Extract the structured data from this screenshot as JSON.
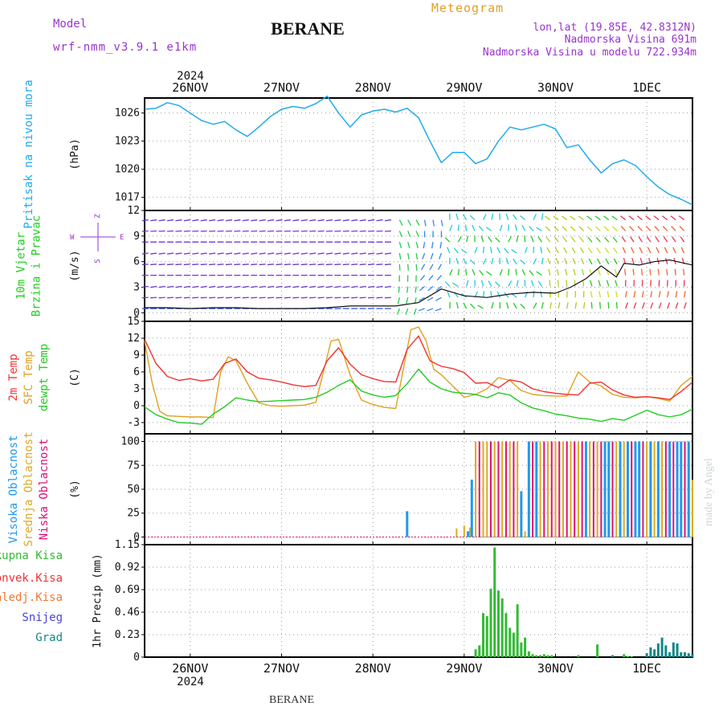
{
  "header": {
    "model_label": "Model",
    "model_name": "wrf-nmm_v3.9.1 e1km",
    "station": "BERANE",
    "product": "Meteogram",
    "coords": "lon,lat (19.85E, 42.8312N)",
    "elevation": "Nadmorska Visina 691m",
    "model_elevation": "Nadmorska Visina u modelu 722.934m",
    "footer_station": "BERANE",
    "credit": "made by Angel"
  },
  "colors": {
    "pressure": "#22aaee",
    "temp2m": "#ee3333",
    "sfc": "#e0a020",
    "dew": "#22cc22",
    "cloud_high": "#2299ee",
    "cloud_mid": "#ddaa22",
    "cloud_low": "#dd1177",
    "precip_total": "#33bb33",
    "precip_grad": "#118888",
    "wind_speed": "#111111",
    "label_purple": "#9933cc",
    "label_orange": "#e0a020"
  },
  "time_axis": {
    "top_year": "2024",
    "bottom_year": "2024",
    "day_labels": [
      "26NOV",
      "27NOV",
      "28NOV",
      "29NOV",
      "30NOV",
      "1DEC"
    ],
    "start_hour": -12,
    "end_hour": 132
  },
  "chart_data": [
    {
      "type": "line",
      "id": "pressure",
      "ylabel": "(hPa)",
      "side_label": [
        "Pritisak na nivou mora"
      ],
      "ylim": [
        1015.6,
        1027.6
      ],
      "yticks": [
        1017,
        1020,
        1023,
        1026
      ],
      "grid": true,
      "series": [
        {
          "x": [
            -12,
            -9,
            -6,
            -3,
            0,
            3,
            6,
            9,
            12,
            15,
            18,
            21,
            24,
            27,
            30,
            33,
            36,
            39,
            42,
            45,
            48,
            51,
            54,
            57,
            60,
            63,
            66,
            69,
            72,
            75,
            78,
            81,
            84,
            87,
            90,
            93,
            96,
            99,
            102,
            105,
            108,
            111,
            114,
            117,
            120,
            123,
            126,
            129,
            132
          ],
          "values": [
            1026.4,
            1026.5,
            1027.1,
            1026.8,
            1026.0,
            1025.2,
            1024.8,
            1025.1,
            1024.2,
            1023.5,
            1024.5,
            1025.6,
            1026.4,
            1026.7,
            1026.5,
            1027.0,
            1027.8,
            1026.0,
            1024.5,
            1025.8,
            1026.2,
            1026.4,
            1026.1,
            1026.5,
            1025.5,
            1023.0,
            1020.7,
            1021.8,
            1021.8,
            1020.6,
            1021.1,
            1023.0,
            1024.5,
            1024.2,
            1024.5,
            1024.8,
            1024.3,
            1022.3,
            1022.6,
            1021.0,
            1019.6,
            1020.6,
            1021.0,
            1020.4,
            1019.2,
            1018.1,
            1017.3,
            1016.8,
            1016.2
          ]
        }
      ]
    },
    {
      "type": "line",
      "id": "wind",
      "ylabel": "(m/s)",
      "side_label": [
        "10m Vjetar",
        "Brzina i Pravac"
      ],
      "direction_key": [
        "Z",
        "W",
        "E",
        "S"
      ],
      "ylim": [
        -1,
        12
      ],
      "yticks": [
        0,
        3,
        6,
        9,
        12
      ],
      "grid": true,
      "series": [
        {
          "name": "wind speed",
          "x": [
            -12,
            -6,
            0,
            6,
            12,
            18,
            24,
            30,
            36,
            42,
            48,
            54,
            60,
            66,
            72,
            78,
            84,
            90,
            96,
            100,
            104,
            108,
            112,
            114,
            118,
            122,
            126,
            132
          ],
          "values": [
            0.6,
            0.6,
            0.5,
            0.6,
            0.6,
            0.5,
            0.5,
            0.5,
            0.6,
            0.8,
            0.8,
            0.8,
            1.2,
            2.8,
            2.0,
            1.8,
            2.2,
            2.4,
            2.3,
            3.0,
            4.0,
            5.5,
            4.2,
            5.8,
            5.6,
            6.0,
            6.2,
            5.6
          ]
        }
      ]
    },
    {
      "type": "line",
      "id": "temperature",
      "ylabel": "(C)",
      "side_label": [
        "2m Temp",
        "SFC Temp",
        "dewpt Temp"
      ],
      "ylim": [
        -5,
        15
      ],
      "yticks": [
        -3,
        0,
        3,
        6,
        9,
        12,
        15
      ],
      "grid": true,
      "series": [
        {
          "name": "2m Temp",
          "x": [
            -12,
            -9,
            -6,
            -3,
            0,
            3,
            6,
            9,
            12,
            15,
            18,
            21,
            24,
            27,
            30,
            33,
            36,
            39,
            42,
            45,
            48,
            51,
            54,
            57,
            60,
            63,
            66,
            69,
            72,
            75,
            78,
            81,
            84,
            87,
            90,
            93,
            96,
            99,
            102,
            105,
            108,
            111,
            114,
            117,
            120,
            123,
            126,
            129,
            132
          ],
          "values": [
            11.8,
            7.5,
            5.2,
            4.5,
            4.8,
            4.4,
            4.7,
            7.5,
            8.3,
            6.0,
            4.9,
            4.6,
            4.2,
            3.7,
            3.4,
            3.6,
            8.0,
            10.3,
            7.4,
            5.5,
            4.8,
            4.3,
            4.2,
            10.0,
            12.4,
            8.0,
            7.0,
            6.6,
            5.9,
            4.0,
            4.1,
            3.2,
            4.6,
            4.2,
            3.0,
            2.5,
            2.2,
            2.0,
            1.9,
            4.0,
            4.2,
            2.8,
            1.9,
            1.5,
            1.6,
            1.4,
            1.1,
            2.5,
            4.2
          ]
        },
        {
          "name": "SFC Temp",
          "x": [
            -12,
            -10,
            -8,
            -6,
            -3,
            0,
            3,
            6,
            8,
            10,
            12,
            15,
            18,
            21,
            24,
            27,
            30,
            33,
            35,
            37,
            39,
            42,
            45,
            48,
            51,
            54,
            56,
            58,
            60,
            62,
            64,
            66,
            69,
            72,
            75,
            78,
            81,
            84,
            87,
            90,
            93,
            96,
            99,
            102,
            105,
            108,
            111,
            114,
            117,
            120,
            123,
            126,
            129,
            132
          ],
          "values": [
            11.5,
            4.0,
            -1.0,
            -1.8,
            -1.9,
            -2.0,
            -2.0,
            -2.1,
            6.0,
            8.7,
            8.0,
            4.0,
            0.5,
            0.0,
            -0.1,
            0.0,
            0.1,
            0.6,
            6.0,
            11.5,
            11.8,
            5.5,
            1.0,
            0.2,
            -0.3,
            -0.5,
            6.5,
            13.5,
            14.0,
            11.5,
            6.5,
            5.5,
            3.5,
            1.5,
            2.0,
            3.0,
            5.0,
            4.5,
            2.7,
            2.0,
            1.8,
            1.7,
            1.7,
            6.0,
            4.2,
            3.5,
            2.0,
            1.5,
            1.4,
            1.6,
            1.3,
            0.8,
            3.6,
            5.2
          ]
        },
        {
          "name": "dewpt Temp",
          "x": [
            -12,
            -9,
            -6,
            -3,
            0,
            3,
            6,
            9,
            12,
            15,
            18,
            21,
            24,
            27,
            30,
            33,
            36,
            39,
            42,
            45,
            48,
            51,
            54,
            57,
            60,
            63,
            66,
            69,
            72,
            75,
            78,
            81,
            84,
            87,
            90,
            93,
            96,
            99,
            102,
            105,
            108,
            111,
            114,
            117,
            120,
            123,
            126,
            129,
            132
          ],
          "values": [
            -0.2,
            -1.6,
            -2.4,
            -3.0,
            -3.1,
            -3.3,
            -1.5,
            -0.2,
            1.4,
            1.0,
            0.7,
            0.8,
            0.9,
            1.0,
            1.1,
            1.5,
            2.4,
            3.6,
            4.6,
            2.6,
            1.9,
            1.5,
            1.8,
            3.9,
            6.5,
            4.2,
            3.0,
            2.4,
            2.2,
            2.0,
            1.4,
            2.3,
            1.9,
            0.5,
            -0.4,
            -0.9,
            -1.5,
            -1.8,
            -2.2,
            -2.4,
            -2.8,
            -2.3,
            -2.6,
            -1.7,
            -0.8,
            -1.6,
            -2.0,
            -1.6,
            -0.6
          ]
        }
      ]
    },
    {
      "type": "bar",
      "id": "cloud",
      "ylabel": "(%)",
      "side_label": [
        "Visoka Oblacnost",
        "Srednja Oblacnost",
        "Niska Oblacnost"
      ],
      "ylim": [
        -8,
        108
      ],
      "yticks": [
        0,
        25,
        50,
        75,
        100
      ],
      "grid": true,
      "series": [
        {
          "name": "Visoka Oblacnost",
          "x": [
            57,
            73,
            74,
            87,
            89,
            91,
            104,
            109,
            110,
            113,
            115,
            117,
            118,
            121,
            123,
            126,
            128,
            129,
            131
          ],
          "values": [
            27,
            6,
            60,
            48,
            100,
            100,
            100,
            100,
            100,
            100,
            100,
            100,
            100,
            100,
            100,
            100,
            100,
            100,
            100
          ]
        },
        {
          "name": "Srednja Oblacnost",
          "x": [
            70,
            72,
            73.5,
            75,
            77,
            78,
            80,
            82,
            84,
            86,
            88,
            92,
            94,
            96,
            98,
            100,
            102,
            105,
            107,
            112,
            114,
            116,
            118,
            120,
            122,
            124,
            126,
            128,
            130,
            132
          ],
          "values": [
            9,
            12,
            10,
            100,
            100,
            100,
            100,
            100,
            100,
            100,
            6,
            100,
            100,
            100,
            100,
            100,
            100,
            100,
            100,
            100,
            100,
            100,
            100,
            100,
            100,
            100,
            100,
            100,
            100,
            60
          ]
        },
        {
          "name": "Niska Oblacnost",
          "x": [
            76,
            79,
            81,
            83,
            85,
            90,
            93,
            95,
            97,
            99,
            101,
            103,
            106,
            108,
            111,
            113,
            116,
            119,
            121,
            123,
            125,
            127,
            130
          ],
          "values": [
            100,
            100,
            100,
            100,
            100,
            100,
            100,
            100,
            100,
            100,
            100,
            100,
            100,
            100,
            100,
            100,
            100,
            100,
            100,
            100,
            100,
            100,
            100
          ]
        }
      ]
    },
    {
      "type": "bar",
      "id": "precip",
      "ylabel": "1hr Precip (mm)",
      "legend": [
        "Ukupna Kisa",
        "Konvek.Kisa",
        "Zaledj.Kisa",
        "Snijeg",
        "Grad"
      ],
      "ylim": [
        0,
        1.15
      ],
      "yticks": [
        0,
        0.23,
        0.46,
        0.69,
        0.92,
        1.15
      ],
      "grid": true,
      "series": [
        {
          "name": "Ukupna Kisa",
          "x": [
            75,
            76,
            77,
            78,
            79,
            80,
            81,
            82,
            83,
            84,
            85,
            86,
            87,
            88,
            89,
            90,
            91,
            92,
            93,
            94,
            95,
            102,
            107,
            114,
            115,
            116
          ],
          "values": [
            0.08,
            0.12,
            0.45,
            0.42,
            0.7,
            1.12,
            0.68,
            0.6,
            0.45,
            0.3,
            0.25,
            0.54,
            0.15,
            0.2,
            0.06,
            0.03,
            0.02,
            0.02,
            0.03,
            0.02,
            0.02,
            0.02,
            0.13,
            0.03,
            0.01,
            0.01
          ]
        },
        {
          "name": "Grad",
          "x": [
            111,
            120,
            121,
            122,
            123,
            124,
            125,
            126,
            127,
            128,
            129,
            130,
            131,
            132
          ],
          "values": [
            0.02,
            0.04,
            0.1,
            0.08,
            0.14,
            0.2,
            0.12,
            0.05,
            0.15,
            0.14,
            0.05,
            0.05,
            0.04,
            0.03
          ]
        }
      ]
    }
  ]
}
